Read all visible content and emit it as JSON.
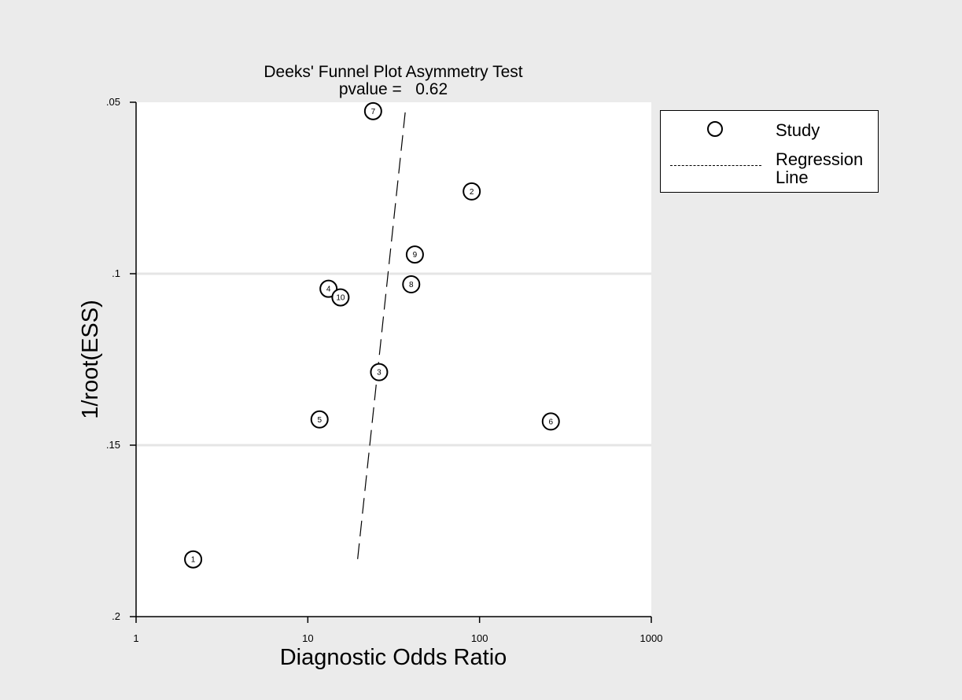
{
  "chart_data": {
    "type": "scatter",
    "title": "Deeks' Funnel Plot Asymmetry Test",
    "subtitle": "pvalue =   0.62",
    "xlabel": "Diagnostic Odds Ratio",
    "ylabel": "1/root(ESS)",
    "x_scale": "log",
    "xlim": [
      1,
      1000
    ],
    "ylim": [
      0.2,
      0.05
    ],
    "y_reversed": true,
    "x_ticks": [
      1,
      10,
      100,
      1000
    ],
    "x_tick_labels": [
      "1",
      "10",
      "100",
      "1000"
    ],
    "y_ticks": [
      0.05,
      0.1,
      0.15,
      0.2
    ],
    "y_tick_labels": [
      ".05",
      ".1",
      ".15",
      ".2"
    ],
    "grid": "horizontal",
    "legend_position": "right",
    "points": [
      {
        "label": "1",
        "x": 2.15,
        "y": 0.1833
      },
      {
        "label": "2",
        "x": 90,
        "y": 0.076
      },
      {
        "label": "3",
        "x": 26,
        "y": 0.1287
      },
      {
        "label": "4",
        "x": 13.2,
        "y": 0.1044
      },
      {
        "label": "5",
        "x": 11.7,
        "y": 0.1425
      },
      {
        "label": "6",
        "x": 260,
        "y": 0.1431
      },
      {
        "label": "7",
        "x": 24,
        "y": 0.0526
      },
      {
        "label": "8",
        "x": 40,
        "y": 0.1031
      },
      {
        "label": "9",
        "x": 42,
        "y": 0.0944
      },
      {
        "label": "10",
        "x": 15.5,
        "y": 0.1069
      }
    ],
    "regression_line": {
      "x": [
        19.5,
        37
      ],
      "y": [
        0.1832,
        0.0524
      ]
    }
  },
  "legend": {
    "study_label": "Study",
    "line_label": "Regression Line"
  },
  "colors": {
    "background": "#ebebeb",
    "plot_area": "#ffffff",
    "grid": "#e5e5e5",
    "ink": "#000000"
  }
}
